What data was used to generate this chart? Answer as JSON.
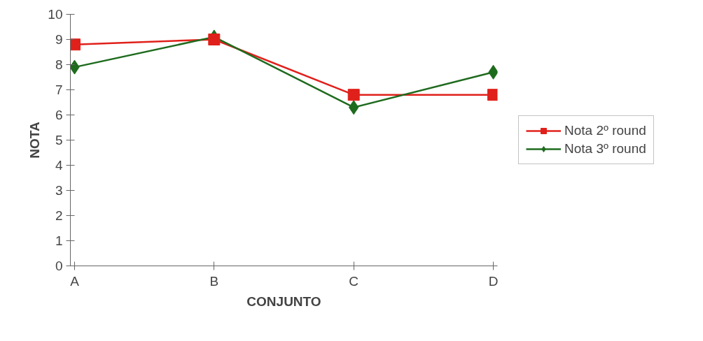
{
  "chart_data": {
    "type": "line",
    "xlabel": "CONJUNTO",
    "ylabel": "NOTA",
    "categories": [
      "A",
      "B",
      "C",
      "D"
    ],
    "series": [
      {
        "name": "Nota 2º round",
        "color": "#e0201b",
        "marker": "square",
        "values": [
          8.8,
          9.0,
          6.8,
          6.8
        ]
      },
      {
        "name": "Nota 3º round",
        "color": "#1e6b1e",
        "marker": "diamond",
        "values": [
          7.9,
          9.1,
          6.3,
          7.7
        ]
      }
    ],
    "ylim": [
      0,
      10
    ],
    "yticks": [
      0,
      1,
      2,
      3,
      4,
      5,
      6,
      7,
      8,
      9,
      10
    ],
    "grid": false,
    "legend": "right"
  }
}
